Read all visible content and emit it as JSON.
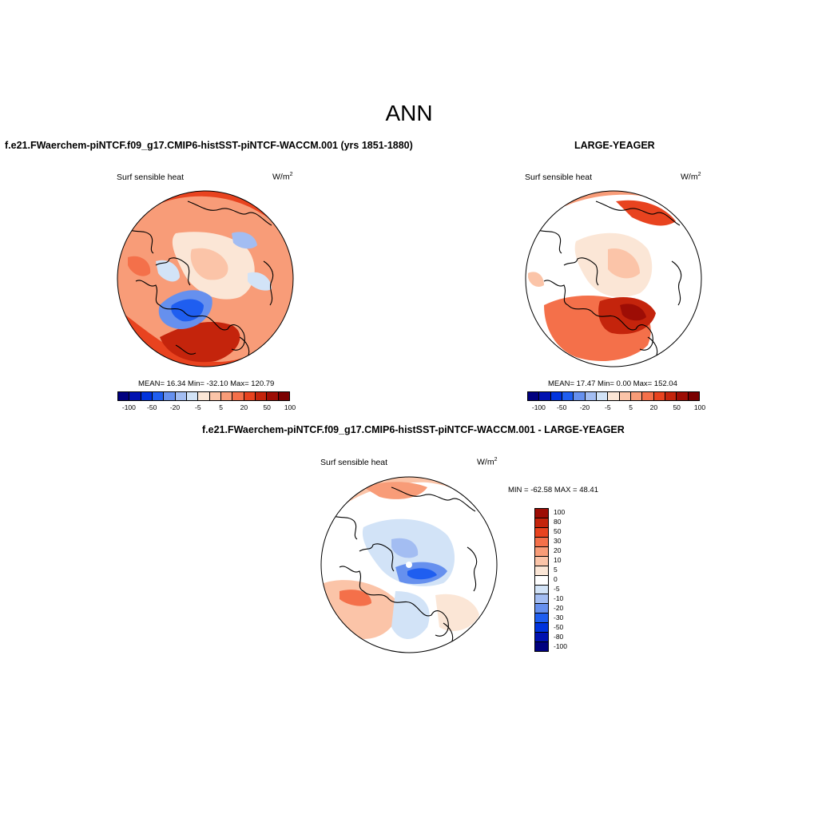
{
  "main_title": "ANN",
  "panel_left": {
    "case_title": "f.e21.FWaerchem-piNTCF.f09_g17.CMIP6-histSST-piNTCF-WACCM.001 (yrs 1851-1880)",
    "variable": "Surf sensible heat",
    "units_base": "W/m",
    "units_exp": "2",
    "stats": "MEAN=  16.34  Min= -32.10  Max= 120.79"
  },
  "panel_right": {
    "case_title": "LARGE-YEAGER",
    "variable": "Surf sensible heat",
    "units_base": "W/m",
    "units_exp": "2",
    "stats": "MEAN=  17.47  Min=   0.00  Max= 152.04"
  },
  "panel_diff": {
    "case_title": "f.e21.FWaerchem-piNTCF.f09_g17.CMIP6-histSST-piNTCF-WACCM.001 - LARGE-YEAGER",
    "variable": "Surf sensible heat",
    "units_base": "W/m",
    "units_exp": "2",
    "stats": "MIN = -62.58 MAX =  48.41"
  },
  "horizontal_colorbar": {
    "colors": [
      "#00007f",
      "#0011b0",
      "#0033dd",
      "#1f5ef0",
      "#6690ee",
      "#a3bdf2",
      "#d2e3f7",
      "#fbe6d6",
      "#fbc4a8",
      "#f89c78",
      "#f4704a",
      "#e8431f",
      "#c4240c",
      "#9d0d05",
      "#7a0000"
    ],
    "labels": [
      "-100",
      "-50",
      "-20",
      "-5",
      "5",
      "20",
      "50",
      "100"
    ]
  },
  "vertical_colorbar": {
    "colors_top_to_bottom": [
      "#9d0d05",
      "#c4240c",
      "#e8431f",
      "#f4704a",
      "#f89c78",
      "#fbc4a8",
      "#fbe6d6",
      "#ffffff",
      "#d2e3f7",
      "#a3bdf2",
      "#6690ee",
      "#1f5ef0",
      "#0033dd",
      "#0011b0",
      "#00007f"
    ],
    "labels_top_to_bottom": [
      "100",
      "80",
      "50",
      "30",
      "20",
      "10",
      "5",
      "0",
      "-5",
      "-10",
      "-20",
      "-30",
      "-50",
      "-80",
      "-100"
    ]
  },
  "colors": {
    "strong_warm": "#e8431f",
    "mid_warm": "#f89c78",
    "light_warm": "#fbe6d6",
    "light_cool": "#d2e3f7",
    "mid_cool": "#6690ee",
    "strong_cool": "#1f5ef0"
  }
}
